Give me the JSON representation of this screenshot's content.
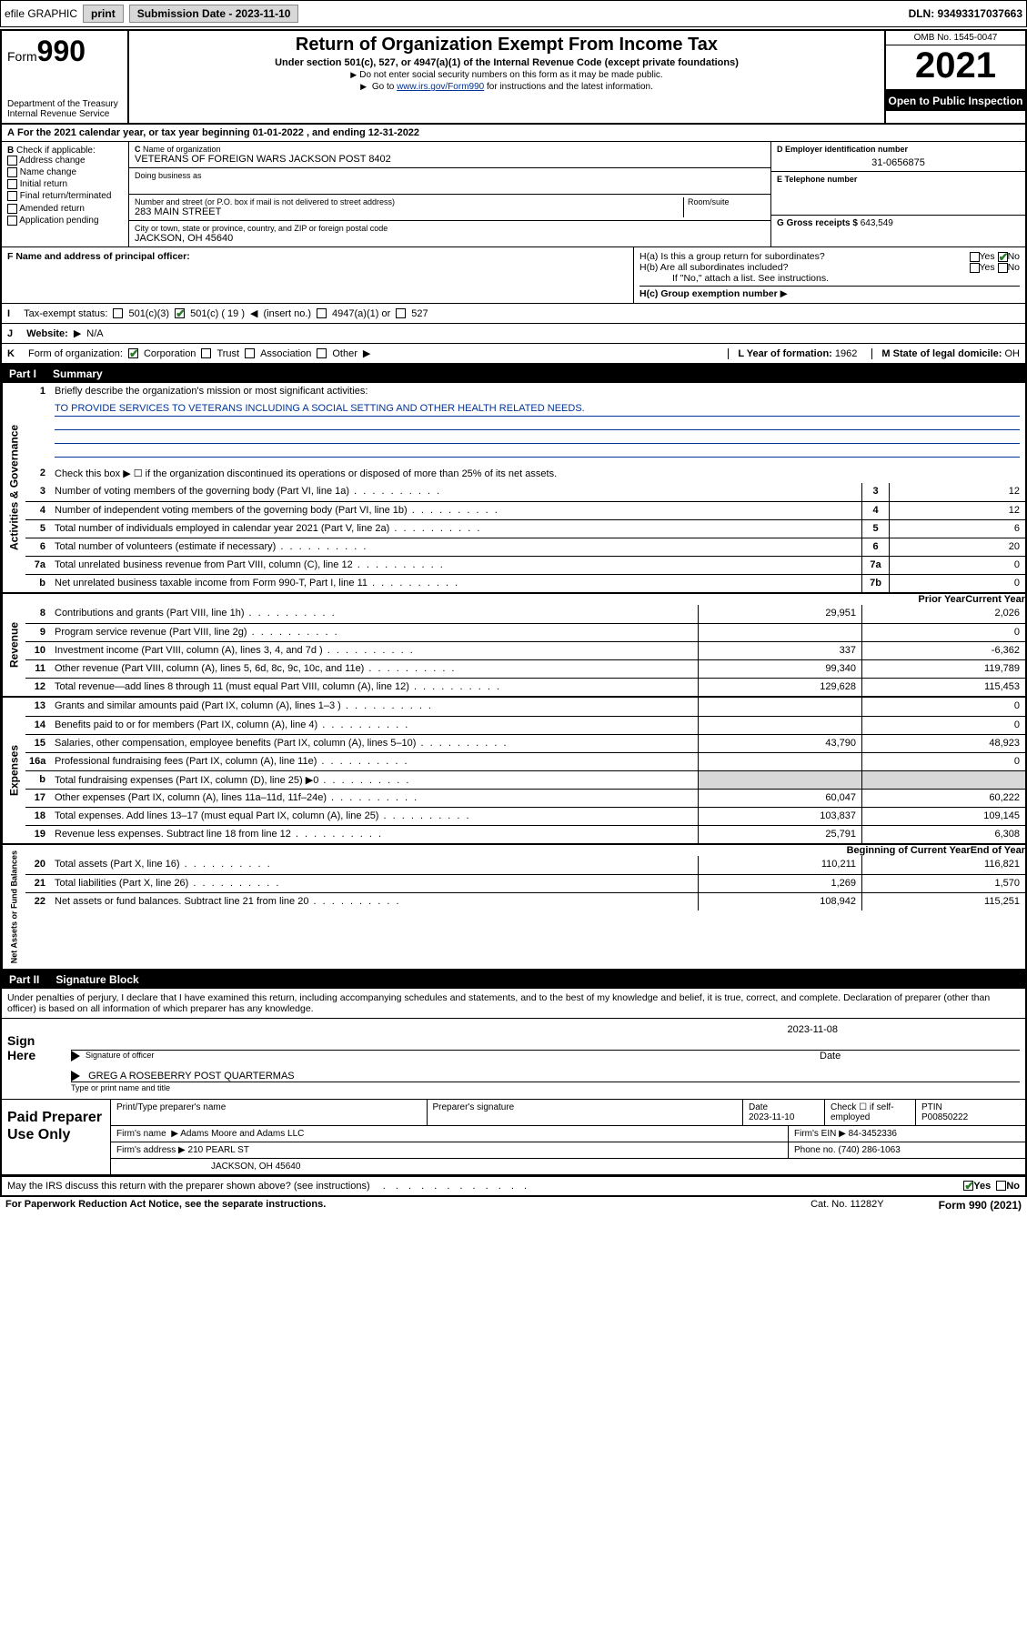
{
  "topbar": {
    "efile": "efile GRAPHIC",
    "print": "print",
    "subdate_lbl": "Submission Date - 2023-11-10",
    "dln": "DLN: 93493317037663"
  },
  "header": {
    "form_word": "Form",
    "form_num": "990",
    "dept": "Department of the Treasury",
    "irs": "Internal Revenue Service",
    "title": "Return of Organization Exempt From Income Tax",
    "sub": "Under section 501(c), 527, or 4947(a)(1) of the Internal Revenue Code (except private foundations)",
    "line1": "Do not enter social security numbers on this form as it may be made public.",
    "line2_pre": "Go to ",
    "line2_link": "www.irs.gov/Form990",
    "line2_post": " for instructions and the latest information.",
    "omb": "OMB No. 1545-0047",
    "year": "2021",
    "open": "Open to Public Inspection"
  },
  "period": {
    "text": "For the 2021 calendar year, or tax year beginning 01-01-2022    , and ending 12-31-2022"
  },
  "boxB": {
    "label": "Check if applicable:",
    "opts": [
      "Address change",
      "Name change",
      "Initial return",
      "Final return/terminated",
      "Amended return",
      "Application pending"
    ]
  },
  "boxC": {
    "name_lbl": "Name of organization",
    "name": "VETERANS OF FOREIGN WARS JACKSON POST 8402",
    "dba_lbl": "Doing business as",
    "street_lbl": "Number and street (or P.O. box if mail is not delivered to street address)",
    "room_lbl": "Room/suite",
    "street": "283 MAIN STREET",
    "city_lbl": "City or town, state or province, country, and ZIP or foreign postal code",
    "city": "JACKSON, OH  45640"
  },
  "boxD": {
    "lbl": "D Employer identification number",
    "val": "31-0656875"
  },
  "boxE": {
    "lbl": "E Telephone number",
    "val": ""
  },
  "boxG": {
    "lbl": "G Gross receipts $",
    "val": "643,549"
  },
  "boxF": {
    "lbl": "F  Name and address of principal officer:"
  },
  "boxH": {
    "a": "H(a)  Is this a group return for subordinates?",
    "b": "H(b)  Are all subordinates included?",
    "bnote": "If \"No,\" attach a list. See instructions.",
    "c": "H(c)  Group exemption number"
  },
  "rowI": {
    "lbl": "Tax-exempt status:",
    "c19": "501(c) ( 19 )",
    "insert": "(insert no.)",
    "opts": [
      "501(c)(3)",
      "4947(a)(1) or",
      "527"
    ]
  },
  "rowJ": {
    "lbl": "Website:",
    "val": "N/A"
  },
  "rowK": {
    "lbl": "Form of organization:",
    "opts": [
      "Corporation",
      "Trust",
      "Association",
      "Other"
    ]
  },
  "rowL": {
    "lbl": "L Year of formation:",
    "val": "1962"
  },
  "rowM": {
    "lbl": "M State of legal domicile:",
    "val": "OH"
  },
  "partI": {
    "tag": "Part I",
    "name": "Summary"
  },
  "mission": {
    "lbl": "Briefly describe the organization's mission or most significant activities:",
    "text": "TO PROVIDE SERVICES TO VETERANS INCLUDING A SOCIAL SETTING AND OTHER HEALTH RELATED NEEDS."
  },
  "line2": "Check this box ▶ ☐  if the organization discontinued its operations or disposed of more than 25% of its net assets.",
  "sumA": [
    {
      "n": "3",
      "d": "Number of voting members of the governing body (Part VI, line 1a)",
      "c": "3",
      "v": "12"
    },
    {
      "n": "4",
      "d": "Number of independent voting members of the governing body (Part VI, line 1b)",
      "c": "4",
      "v": "12"
    },
    {
      "n": "5",
      "d": "Total number of individuals employed in calendar year 2021 (Part V, line 2a)",
      "c": "5",
      "v": "6"
    },
    {
      "n": "6",
      "d": "Total number of volunteers (estimate if necessary)",
      "c": "6",
      "v": "20"
    },
    {
      "n": "7a",
      "d": "Total unrelated business revenue from Part VIII, column (C), line 12",
      "c": "7a",
      "v": "0"
    },
    {
      "n": "b",
      "d": "Net unrelated business taxable income from Form 990-T, Part I, line 11",
      "c": "7b",
      "v": "0"
    }
  ],
  "colhdr": {
    "prior": "Prior Year",
    "current": "Current Year",
    "boy": "Beginning of Current Year",
    "eoy": "End of Year"
  },
  "revenue": [
    {
      "n": "8",
      "d": "Contributions and grants (Part VIII, line 1h)",
      "p": "29,951",
      "c": "2,026"
    },
    {
      "n": "9",
      "d": "Program service revenue (Part VIII, line 2g)",
      "p": "",
      "c": "0"
    },
    {
      "n": "10",
      "d": "Investment income (Part VIII, column (A), lines 3, 4, and 7d )",
      "p": "337",
      "c": "-6,362"
    },
    {
      "n": "11",
      "d": "Other revenue (Part VIII, column (A), lines 5, 6d, 8c, 9c, 10c, and 11e)",
      "p": "99,340",
      "c": "119,789"
    },
    {
      "n": "12",
      "d": "Total revenue—add lines 8 through 11 (must equal Part VIII, column (A), line 12)",
      "p": "129,628",
      "c": "115,453"
    }
  ],
  "expenses": [
    {
      "n": "13",
      "d": "Grants and similar amounts paid (Part IX, column (A), lines 1–3 )",
      "p": "",
      "c": "0"
    },
    {
      "n": "14",
      "d": "Benefits paid to or for members (Part IX, column (A), line 4)",
      "p": "",
      "c": "0"
    },
    {
      "n": "15",
      "d": "Salaries, other compensation, employee benefits (Part IX, column (A), lines 5–10)",
      "p": "43,790",
      "c": "48,923"
    },
    {
      "n": "16a",
      "d": "Professional fundraising fees (Part IX, column (A), line 11e)",
      "p": "",
      "c": "0"
    },
    {
      "n": "b",
      "d": "Total fundraising expenses (Part IX, column (D), line 25) ▶0",
      "p": "GREY",
      "c": "GREY"
    },
    {
      "n": "17",
      "d": "Other expenses (Part IX, column (A), lines 11a–11d, 11f–24e)",
      "p": "60,047",
      "c": "60,222"
    },
    {
      "n": "18",
      "d": "Total expenses. Add lines 13–17 (must equal Part IX, column (A), line 25)",
      "p": "103,837",
      "c": "109,145"
    },
    {
      "n": "19",
      "d": "Revenue less expenses. Subtract line 18 from line 12",
      "p": "25,791",
      "c": "6,308"
    }
  ],
  "netassets": [
    {
      "n": "20",
      "d": "Total assets (Part X, line 16)",
      "p": "110,211",
      "c": "116,821"
    },
    {
      "n": "21",
      "d": "Total liabilities (Part X, line 26)",
      "p": "1,269",
      "c": "1,570"
    },
    {
      "n": "22",
      "d": "Net assets or fund balances. Subtract line 21 from line 20",
      "p": "108,942",
      "c": "115,251"
    }
  ],
  "sidelabels": {
    "ag": "Activities & Governance",
    "rev": "Revenue",
    "exp": "Expenses",
    "na": "Net Assets or Fund Balances"
  },
  "partII": {
    "tag": "Part II",
    "name": "Signature Block"
  },
  "sigintro": "Under penalties of perjury, I declare that I have examined this return, including accompanying schedules and statements, and to the best of my knowledge and belief, it is true, correct, and complete. Declaration of preparer (other than officer) is based on all information of which preparer has any knowledge.",
  "sign": {
    "here": "Sign Here",
    "sigoff": "Signature of officer",
    "date": "Date",
    "sigdate": "2023-11-08",
    "name": "GREG A ROSEBERRY POST QUARTERMAS",
    "name_lbl": "Type or print name and title"
  },
  "prep": {
    "title": "Paid Preparer Use Only",
    "h1": "Print/Type preparer's name",
    "h2": "Preparer's signature",
    "h3": "Date",
    "h3v": "2023-11-10",
    "h4": "Check ☐ if self-employed",
    "h5": "PTIN",
    "h5v": "P00850222",
    "firm_lbl": "Firm's name",
    "firm": "Adams Moore and Adams LLC",
    "ein_lbl": "Firm's EIN",
    "ein": "84-3452336",
    "addr_lbl": "Firm's address",
    "addr1": "210 PEARL ST",
    "addr2": "JACKSON, OH  45640",
    "phone_lbl": "Phone no.",
    "phone": "(740) 286-1063"
  },
  "footer": {
    "discuss": "May the IRS discuss this return with the preparer shown above? (see instructions)",
    "paperwork": "For Paperwork Reduction Act Notice, see the separate instructions.",
    "cat": "Cat. No. 11282Y",
    "formref": "Form 990 (2021)"
  }
}
